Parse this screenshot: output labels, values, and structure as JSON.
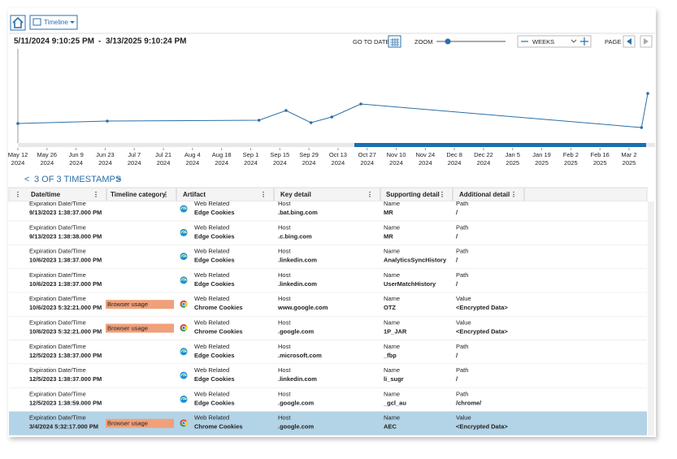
{
  "toolbar": {
    "view": "Timeline",
    "range_start": "5/11/2024 9:10:25 PM",
    "range_sep": "-",
    "range_end": "3/13/2025 9:10:24 PM",
    "go_to_date": "GO TO DATE",
    "zoom": "ZOOM",
    "unit": "WEEKS",
    "page": "PAGE"
  },
  "timeline": {
    "type": "line",
    "color": "#2b6fa8",
    "x": [
      "2024-05-12",
      "2024-06-24",
      "2024-09-05",
      "2024-09-18",
      "2024-09-30",
      "2024-10-10",
      "2024-10-24",
      "2025-03-08",
      "2025-03-11"
    ],
    "values": [
      23,
      26,
      27,
      39,
      24,
      31,
      47,
      18,
      60
    ],
    "ylim": [
      0,
      115
    ],
    "xticks": [
      {
        "value": "2024-05-12",
        "label": "May 12",
        "year": "2024"
      },
      {
        "value": "2024-05-26",
        "label": "May 26",
        "year": "2024"
      },
      {
        "value": "2024-06-09",
        "label": "Jun 9",
        "year": "2024"
      },
      {
        "value": "2024-06-23",
        "label": "Jun 23",
        "year": "2024"
      },
      {
        "value": "2024-07-07",
        "label": "Jul 7",
        "year": "2024"
      },
      {
        "value": "2024-07-21",
        "label": "Jul 21",
        "year": "2024"
      },
      {
        "value": "2024-08-04",
        "label": "Aug 4",
        "year": "2024"
      },
      {
        "value": "2024-08-18",
        "label": "Aug 18",
        "year": "2024"
      },
      {
        "value": "2024-09-01",
        "label": "Sep 1",
        "year": "2024"
      },
      {
        "value": "2024-09-15",
        "label": "Sep 15",
        "year": "2024"
      },
      {
        "value": "2024-09-29",
        "label": "Sep 29",
        "year": "2024"
      },
      {
        "value": "2024-10-13",
        "label": "Oct 13",
        "year": "2024"
      },
      {
        "value": "2024-10-27",
        "label": "Oct 27",
        "year": "2024"
      },
      {
        "value": "2024-11-10",
        "label": "Nov 10",
        "year": "2024"
      },
      {
        "value": "2024-11-24",
        "label": "Nov 24",
        "year": "2024"
      },
      {
        "value": "2024-12-08",
        "label": "Dec 8",
        "year": "2024"
      },
      {
        "value": "2024-12-22",
        "label": "Dec 22",
        "year": "2024"
      },
      {
        "value": "2025-01-05",
        "label": "Jan 5",
        "year": "2025"
      },
      {
        "value": "2025-01-19",
        "label": "Jan 19",
        "year": "2025"
      },
      {
        "value": "2025-02-02",
        "label": "Feb 2",
        "year": "2025"
      },
      {
        "value": "2025-02-16",
        "label": "Feb 16",
        "year": "2025"
      },
      {
        "value": "2025-03-02",
        "label": "Mar 2",
        "year": "2025"
      }
    ]
  },
  "nav": {
    "prev": "<",
    "label": "3 OF 3 TIMESTAMPS",
    "next": ">"
  },
  "table": {
    "columns": [
      "Date/time",
      "Timeline category",
      "Artifact",
      "Key detail",
      "Supporting detail",
      "Additional detail"
    ],
    "rows": [
      {
        "date_label": "Expiration Date/Time",
        "date": "9/13/2023 1:38:37.000 PM",
        "artifact_type": "Web Related",
        "artifact": "Edge Cookies",
        "key_label": "Host",
        "key": ".bat.bing.com",
        "supporting_label": "Name",
        "supporting": "MR",
        "additional_label": "Path",
        "additional": "/"
      },
      {
        "date_label": "Expiration Date/Time",
        "date": "9/13/2023 1:38:38.000 PM",
        "artifact_type": "Web Related",
        "artifact": "Edge Cookies",
        "key_label": "Host",
        "key": ".c.bing.com",
        "supporting_label": "Name",
        "supporting": "MR",
        "additional_label": "Path",
        "additional": "/"
      },
      {
        "date_label": "Expiration Date/Time",
        "date": "10/6/2023 1:38:37.000 PM",
        "artifact_type": "Web Related",
        "artifact": "Edge Cookies",
        "key_label": "Host",
        "key": ".linkedin.com",
        "supporting_label": "Name",
        "supporting": "AnalyticsSyncHistory",
        "additional_label": "Path",
        "additional": "/"
      },
      {
        "date_label": "Expiration Date/Time",
        "date": "10/6/2023 1:38:37.000 PM",
        "artifact_type": "Web Related",
        "artifact": "Edge Cookies",
        "key_label": "Host",
        "key": ".linkedin.com",
        "supporting_label": "Name",
        "supporting": "UserMatchHistory",
        "additional_label": "Path",
        "additional": "/"
      },
      {
        "date_label": "Expiration Date/Time",
        "date": "10/6/2023 5:32:21.000 PM",
        "category": "Browser usage",
        "artifact_type": "Web Related",
        "artifact": "Chrome Cookies",
        "key_label": "Host",
        "key": "www.google.com",
        "supporting_label": "Name",
        "supporting": "OTZ",
        "additional_label": "Value",
        "additional": "<Encrypted Data>"
      },
      {
        "date_label": "Expiration Date/Time",
        "date": "10/6/2023 5:32:21.000 PM",
        "category": "Browser usage",
        "artifact_type": "Web Related",
        "artifact": "Chrome Cookies",
        "key_label": "Host",
        "key": ".google.com",
        "supporting_label": "Name",
        "supporting": "1P_JAR",
        "additional_label": "Value",
        "additional": "<Encrypted Data>"
      },
      {
        "date_label": "Expiration Date/Time",
        "date": "12/5/2023 1:38:37.000 PM",
        "artifact_type": "Web Related",
        "artifact": "Edge Cookies",
        "key_label": "Host",
        "key": ".microsoft.com",
        "supporting_label": "Name",
        "supporting": "_fbp",
        "additional_label": "Path",
        "additional": "/"
      },
      {
        "date_label": "Expiration Date/Time",
        "date": "12/5/2023 1:38:37.000 PM",
        "artifact_type": "Web Related",
        "artifact": "Edge Cookies",
        "key_label": "Host",
        "key": ".linkedin.com",
        "supporting_label": "Name",
        "supporting": "li_sugr",
        "additional_label": "Path",
        "additional": "/"
      },
      {
        "date_label": "Expiration Date/Time",
        "date": "12/5/2023 1:38:59.000 PM",
        "artifact_type": "Web Related",
        "artifact": "Edge Cookies",
        "key_label": "Host",
        "key": ".google.com",
        "supporting_label": "Name",
        "supporting": "_gcl_au",
        "additional_label": "Path",
        "additional": "/chrome/"
      },
      {
        "date_label": "Expiration Date/Time",
        "date": "3/4/2024 5:32:17.000 PM",
        "category": "Browser usage",
        "artifact_type": "Web Related",
        "artifact": "Chrome Cookies",
        "key_label": "Host",
        "key": ".google.com",
        "supporting_label": "Name",
        "supporting": "AEC",
        "additional_label": "Value",
        "additional": "<Encrypted Data>",
        "selected": true
      }
    ]
  }
}
